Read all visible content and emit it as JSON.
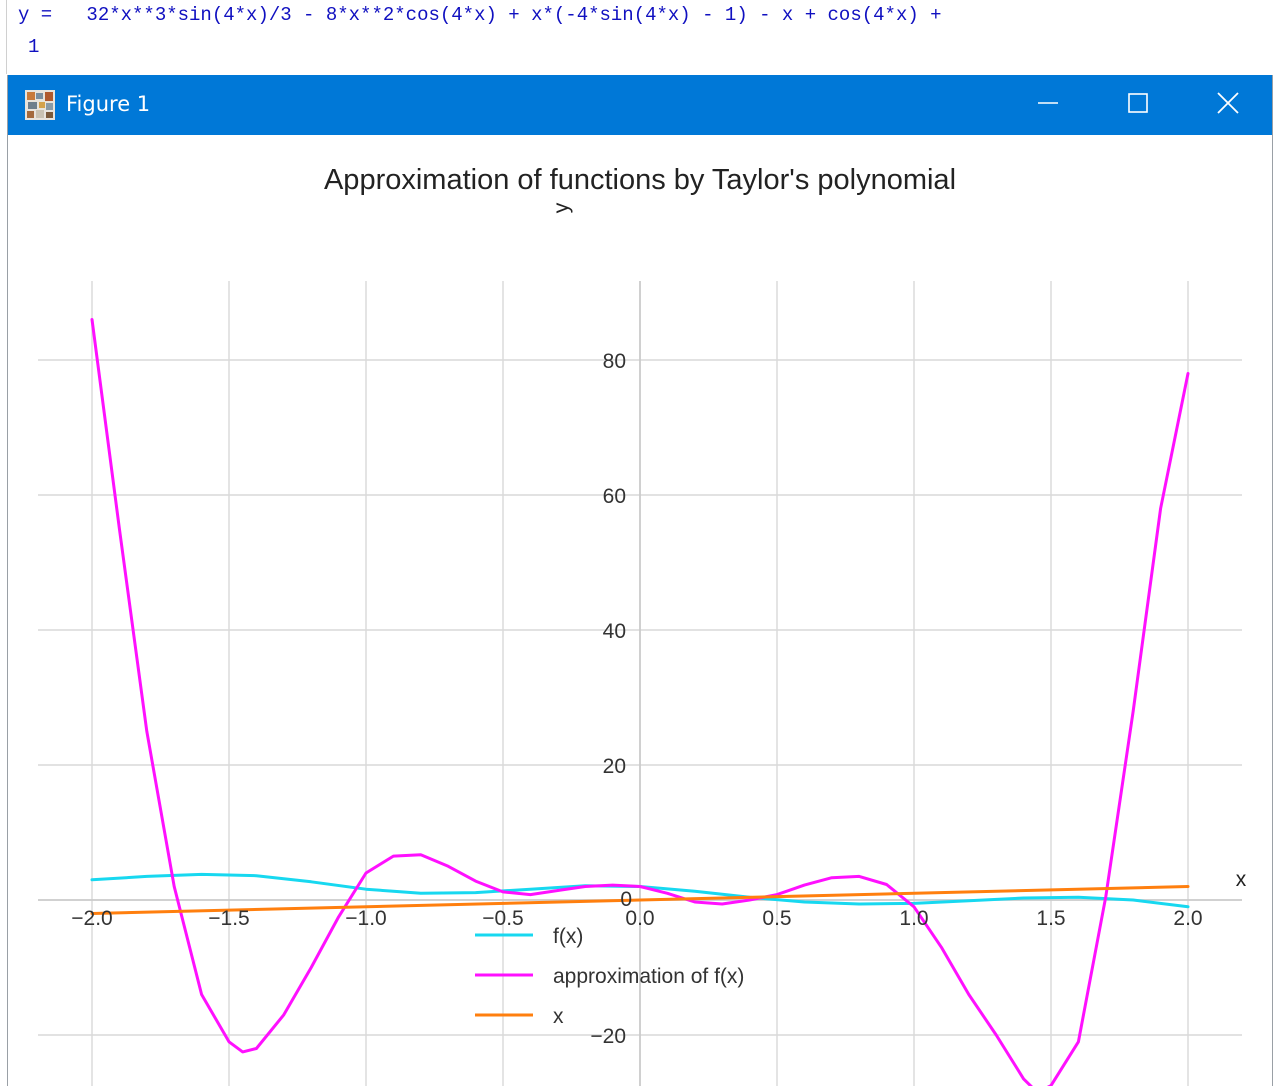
{
  "console": {
    "line1": "y =   32*x**3*sin(4*x)/3 - 8*x**2*cos(4*x) + x*(-4*sin(4*x) - 1) - x + cos(4*x) +",
    "line2": "1"
  },
  "window": {
    "title": "Figure 1",
    "icon": "matplotlib-figure-icon",
    "controls": [
      "minimize-icon",
      "maximize-icon",
      "close-icon"
    ]
  },
  "colors": {
    "titlebar": "#0078d7",
    "fx": "#17d8f0",
    "approx": "#ff10ff",
    "x": "#ff7f0e",
    "grid": "#d9d9d9"
  },
  "chart_data": {
    "type": "line",
    "title": "Approximation of functions by Taylor's polynomial",
    "xlabel": "x",
    "ylabel": "y",
    "xlim": [
      -2.0,
      2.0
    ],
    "ylim": [
      -30,
      90
    ],
    "xticks": [
      -2.0,
      -1.5,
      -1.0,
      -0.5,
      0.0,
      0.5,
      1.0,
      1.5,
      2.0
    ],
    "xtick_labels": [
      "−2.0",
      "−1.5",
      "−1.0",
      "−0.5",
      "0.0",
      "0.5",
      "1.0",
      "1.5",
      "2.0"
    ],
    "yticks": [
      -20,
      0,
      20,
      40,
      60,
      80
    ],
    "ytick_labels": [
      "−20",
      "0",
      "20",
      "40",
      "60",
      "80"
    ],
    "grid": true,
    "legend_position": "bottom-center",
    "series": [
      {
        "name": "f(x)",
        "color": "#17d8f0",
        "x": [
          -2.0,
          -1.8,
          -1.6,
          -1.4,
          -1.2,
          -1.0,
          -0.8,
          -0.6,
          -0.4,
          -0.2,
          0.0,
          0.2,
          0.4,
          0.6,
          0.8,
          1.0,
          1.2,
          1.4,
          1.6,
          1.8,
          2.0
        ],
        "y": [
          3.0,
          3.5,
          3.8,
          3.6,
          2.7,
          1.6,
          1.0,
          1.1,
          1.6,
          2.1,
          2.0,
          1.3,
          0.4,
          -0.3,
          -0.6,
          -0.5,
          -0.1,
          0.3,
          0.4,
          0.0,
          -1.0
        ]
      },
      {
        "name": "approximation of f(x)",
        "color": "#ff10ff",
        "x": [
          -2.0,
          -1.9,
          -1.8,
          -1.7,
          -1.6,
          -1.5,
          -1.45,
          -1.4,
          -1.3,
          -1.2,
          -1.1,
          -1.0,
          -0.9,
          -0.8,
          -0.7,
          -0.6,
          -0.5,
          -0.4,
          -0.3,
          -0.2,
          -0.1,
          0.0,
          0.1,
          0.2,
          0.3,
          0.4,
          0.5,
          0.6,
          0.7,
          0.8,
          0.9,
          1.0,
          1.1,
          1.2,
          1.3,
          1.4,
          1.45,
          1.5,
          1.6,
          1.7,
          1.8,
          1.9,
          2.0
        ],
        "y": [
          86,
          55,
          25,
          2,
          -14,
          -21,
          -22.5,
          -22,
          -17,
          -10,
          -2.5,
          4,
          6.5,
          6.7,
          5.0,
          2.8,
          1.2,
          0.8,
          1.4,
          2.0,
          2.2,
          2.0,
          1.0,
          -0.3,
          -0.6,
          0.0,
          0.8,
          2.2,
          3.3,
          3.5,
          2.3,
          -1.0,
          -7,
          -14,
          -20,
          -26.5,
          -28.5,
          -27.5,
          -21,
          0.5,
          28,
          58,
          78
        ]
      },
      {
        "name": "x",
        "color": "#ff7f0e",
        "x": [
          -2.0,
          2.0
        ],
        "y": [
          -2.0,
          2.0
        ]
      }
    ]
  }
}
